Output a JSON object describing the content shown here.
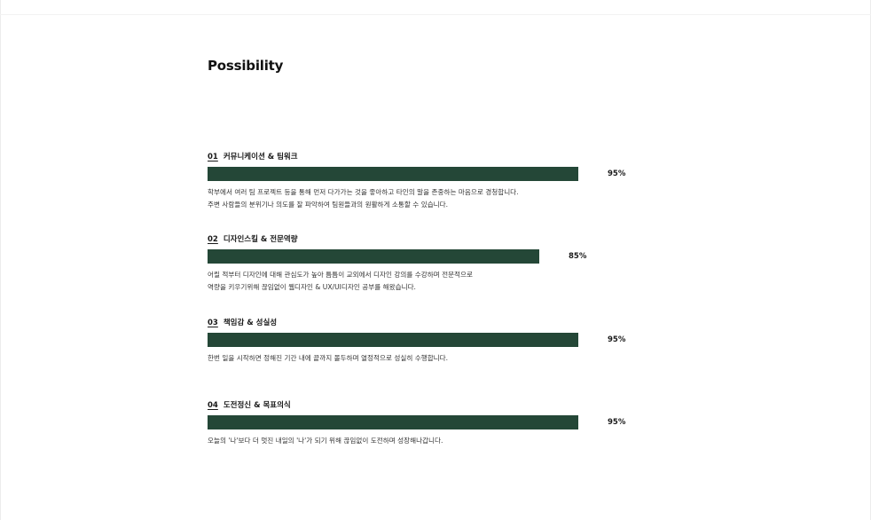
{
  "title": "Possibility",
  "colors": {
    "bar": "#244737",
    "text": "#1a1a1a"
  },
  "skills": [
    {
      "num": "01",
      "name": "커뮤니케이션 & 팀워크",
      "percent_label": "95%",
      "value": 0.95,
      "desc": [
        "학부에서 여러 팀 프로젝트 등을 통해 먼저 다가가는 것을 좋아하고 타인의 말을 존중하는 마음으로 경청합니다.",
        "주변 사람들의 분위기나 의도를 잘 파악하여 팀원들과의 원활하게 소통할 수 있습니다."
      ]
    },
    {
      "num": "02",
      "name": "디자인스킬 & 전문역량",
      "percent_label": "85%",
      "value": 0.85,
      "desc": [
        "어릴 적부터 디자인에 대해 관심도가 높아 틈틈이 교외에서 디자인 강의를 수강하며 전문적으로",
        "역량을 키우기위해 끊임없이 웹디자인 & UX/UI디자인 공부를 해왔습니다."
      ]
    },
    {
      "num": "03",
      "name": "책임감 & 성실성",
      "percent_label": "95%",
      "value": 0.95,
      "desc": [
        "한번 일을 시작하면 정해진 기간 내에 끝까지 몰두하며 열정적으로 성실히 수행합니다."
      ]
    },
    {
      "num": "04",
      "name": "도전정신 & 목표의식",
      "percent_label": "95%",
      "value": 0.95,
      "desc": [
        "오늘의 '나'보다 더 멋진 내일의 '나'가 되기 위해 끊임없이 도전하며 성장해나갑니다."
      ]
    }
  ]
}
